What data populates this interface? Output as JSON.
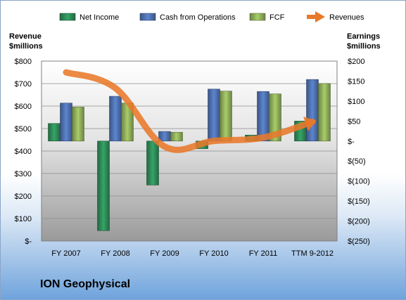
{
  "chart_data": {
    "type": "bar",
    "title": "",
    "company": "ION Geophysical",
    "categories": [
      "FY 2007",
      "FY 2008",
      "FY 2009",
      "FY 2010",
      "FY 2011",
      "TTM 9-2012"
    ],
    "left_axis": {
      "label_line1": "Revenue",
      "label_line2": "$millions",
      "ylim": [
        0,
        800
      ],
      "ticks": [
        0,
        100,
        200,
        300,
        400,
        500,
        600,
        700,
        800
      ],
      "tick_labels": [
        "$-",
        "$100",
        "$200",
        "$300",
        "$400",
        "$500",
        "$600",
        "$700",
        "$800"
      ]
    },
    "right_axis": {
      "label_line1": "Earnings",
      "label_line2": "$millions",
      "ylim": [
        -250,
        200
      ],
      "ticks": [
        -250,
        -200,
        -150,
        -100,
        -50,
        0,
        50,
        100,
        150,
        200
      ],
      "tick_labels": [
        "$(250)",
        "$(200)",
        "$(150)",
        "$(100)",
        "$(50)",
        "$-",
        "$50",
        "$100",
        "$150",
        "$200"
      ]
    },
    "grid": true,
    "legend_position": "top",
    "series": [
      {
        "name": "Net Income",
        "axis": "right",
        "kind": "bar",
        "color": "#2e8b57",
        "values": [
          44,
          -224,
          -110,
          -19,
          15,
          50
        ]
      },
      {
        "name": "Cash from Operations",
        "axis": "right",
        "kind": "bar",
        "color": "#4f71b0",
        "values": [
          95,
          112,
          24,
          130,
          124,
          154
        ]
      },
      {
        "name": "FCF",
        "axis": "right",
        "kind": "bar",
        "color": "#8fae5a",
        "values": [
          85,
          95,
          22,
          125,
          118,
          144
        ]
      },
      {
        "name": "Revenues",
        "axis": "left",
        "kind": "line",
        "color": "#e8792b",
        "values": [
          750,
          680,
          420,
          445,
          460,
          530
        ]
      }
    ]
  }
}
